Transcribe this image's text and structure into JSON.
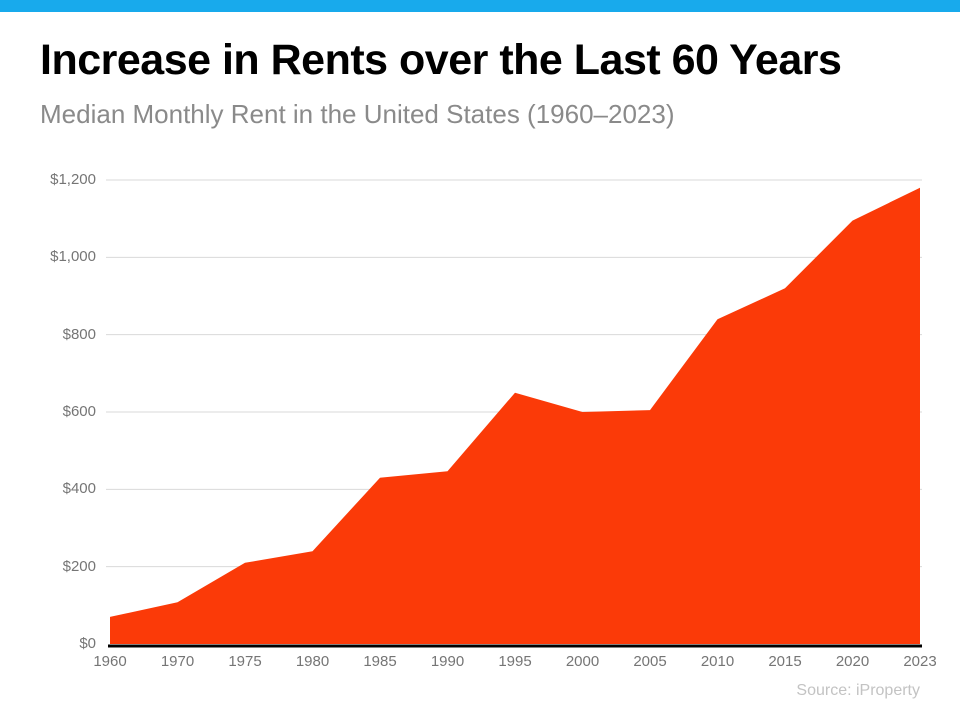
{
  "header": {
    "title": "Increase in Rents over the Last 60 Years",
    "subtitle": "Median Monthly Rent in the United States (1960–2023)"
  },
  "chart_data": {
    "type": "area",
    "title": "Increase in Rents over the Last 60 Years",
    "subtitle": "Median Monthly Rent in the United States (1960–2023)",
    "series_name": "Median Monthly Rent (USD)",
    "categories": [
      "1960",
      "1970",
      "1975",
      "1980",
      "1985",
      "1990",
      "1995",
      "2000",
      "2005",
      "2010",
      "2015",
      "2020",
      "2023"
    ],
    "values": [
      70,
      108,
      210,
      240,
      430,
      447,
      650,
      600,
      605,
      840,
      920,
      1095,
      1180
    ],
    "xlabel": "",
    "ylabel": "",
    "ylim": [
      0,
      1200
    ],
    "y_ticks": [
      0,
      200,
      400,
      600,
      800,
      1000,
      1200
    ],
    "y_tick_labels": [
      "$0",
      "$200",
      "$400",
      "$600",
      "$800",
      "$1,000",
      "$1,200"
    ],
    "grid": "horizontal",
    "legend": "none"
  },
  "footer": {
    "source": "Source: iProperty"
  },
  "colors": {
    "accent_bar": "#18AAEC",
    "area_fill": "#FB3A08",
    "gridline": "#D9D9D9",
    "axis_text": "#757575",
    "title_text": "#000000",
    "subtitle_text": "#8A8A8A",
    "source_text": "#C3C3C3",
    "baseline": "#000000"
  }
}
